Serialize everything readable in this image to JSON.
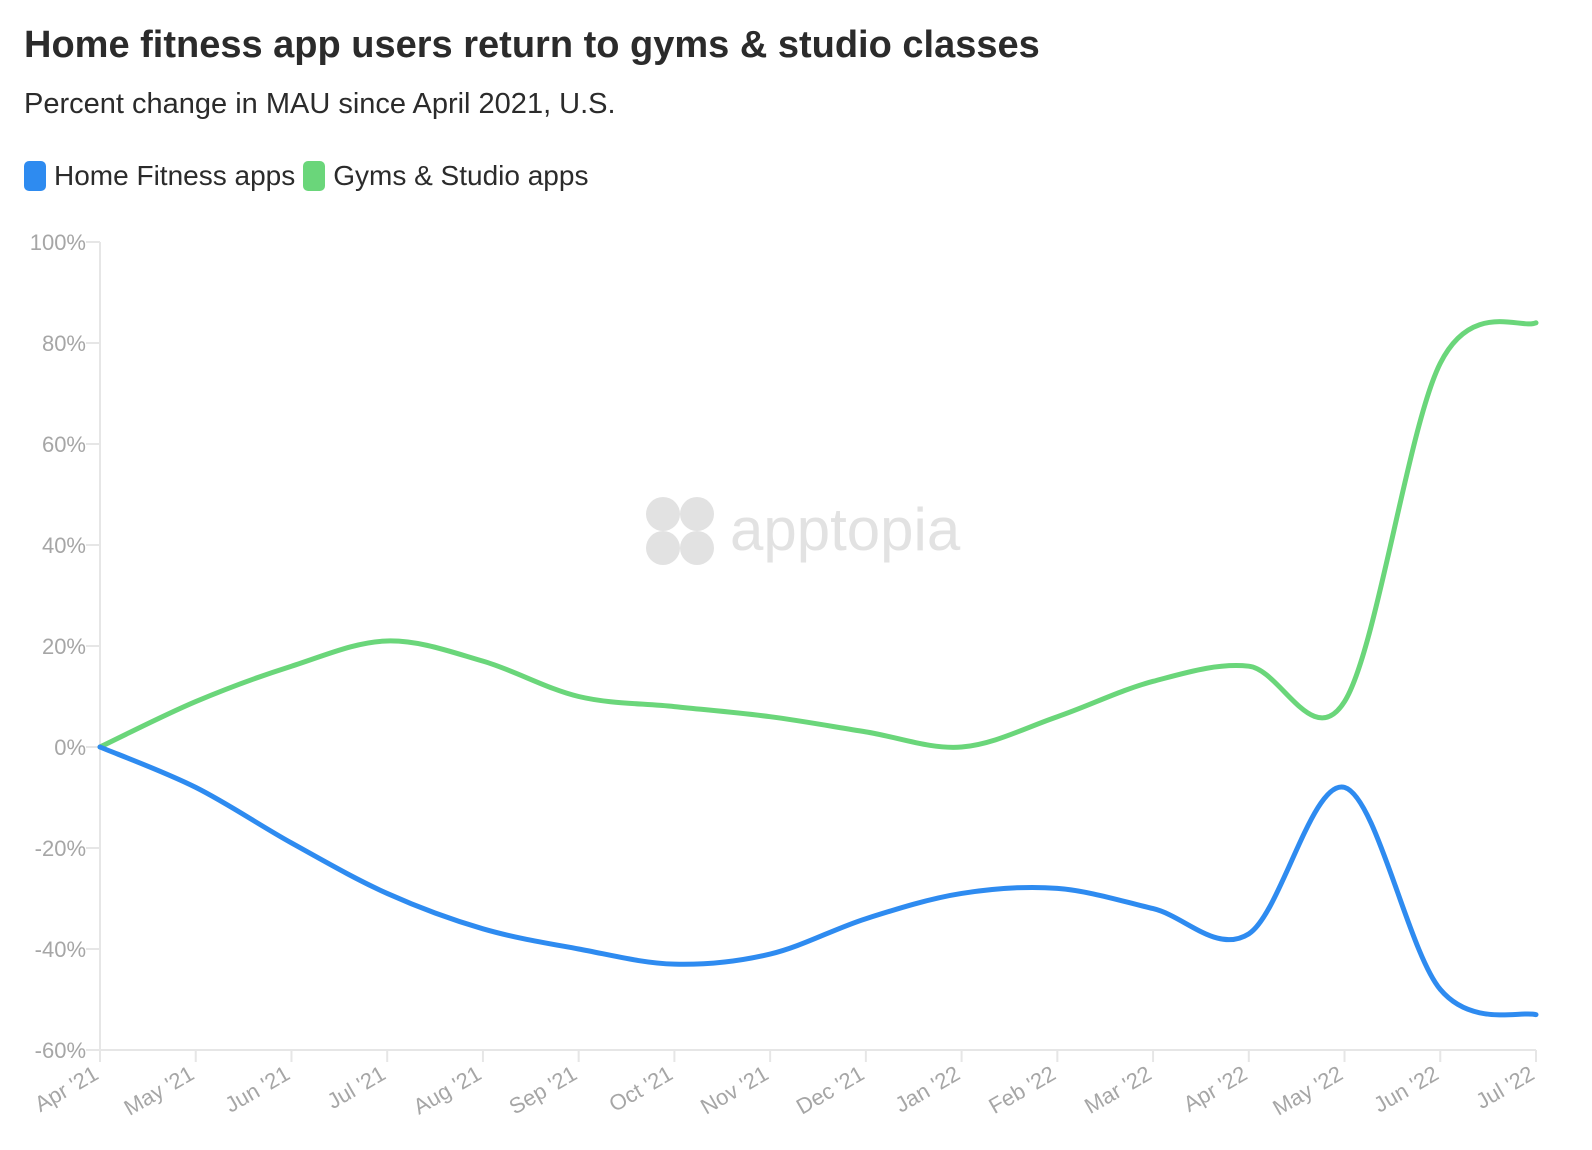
{
  "title": "Home fitness app users return to gyms & studio classes",
  "subtitle": "Percent change in MAU since April 2021, U.S.",
  "watermark": "apptopia",
  "colors": {
    "home": "#2e8bf0",
    "gyms": "#6ad67a",
    "axis": "#e6e6e6",
    "tick_text": "#a6a6a6",
    "text": "#2b2b2b"
  },
  "legend": [
    {
      "label": "Home Fitness apps",
      "color": "#2e8bf0"
    },
    {
      "label": "Gyms & Studio apps",
      "color": "#6ad67a"
    }
  ],
  "chart_data": {
    "type": "line",
    "title": "Home fitness app users return to gyms & studio classes",
    "subtitle": "Percent change in MAU since April 2021, U.S.",
    "xlabel": "",
    "ylabel": "",
    "categories": [
      "Apr '21",
      "May '21",
      "Jun '21",
      "Jul '21",
      "Aug '21",
      "Sep '21",
      "Oct '21",
      "Nov '21",
      "Dec '21",
      "Jan '22",
      "Feb '22",
      "Mar '22",
      "Apr '22",
      "May '22",
      "Jun '22",
      "Jul '22"
    ],
    "ylim": [
      -60,
      100
    ],
    "yticks": [
      100,
      80,
      60,
      40,
      20,
      0,
      -20,
      -40,
      -60
    ],
    "ytick_labels": [
      "100%",
      "80%",
      "60%",
      "40%",
      "20%",
      "0%",
      "-20%",
      "-40%",
      "-60%"
    ],
    "grid": false,
    "legend_position": "top-left",
    "series": [
      {
        "name": "Home Fitness apps",
        "color": "#2e8bf0",
        "values": [
          0,
          -8,
          -19,
          -29,
          -36,
          -40,
          -43,
          -41,
          -34,
          -29,
          -28,
          -32,
          -37,
          -8,
          -48,
          -53
        ]
      },
      {
        "name": "Gyms & Studio apps",
        "color": "#6ad67a",
        "values": [
          0,
          9,
          16,
          21,
          17,
          10,
          8,
          6,
          3,
          0,
          6,
          13,
          16,
          9,
          76,
          84
        ]
      }
    ]
  }
}
